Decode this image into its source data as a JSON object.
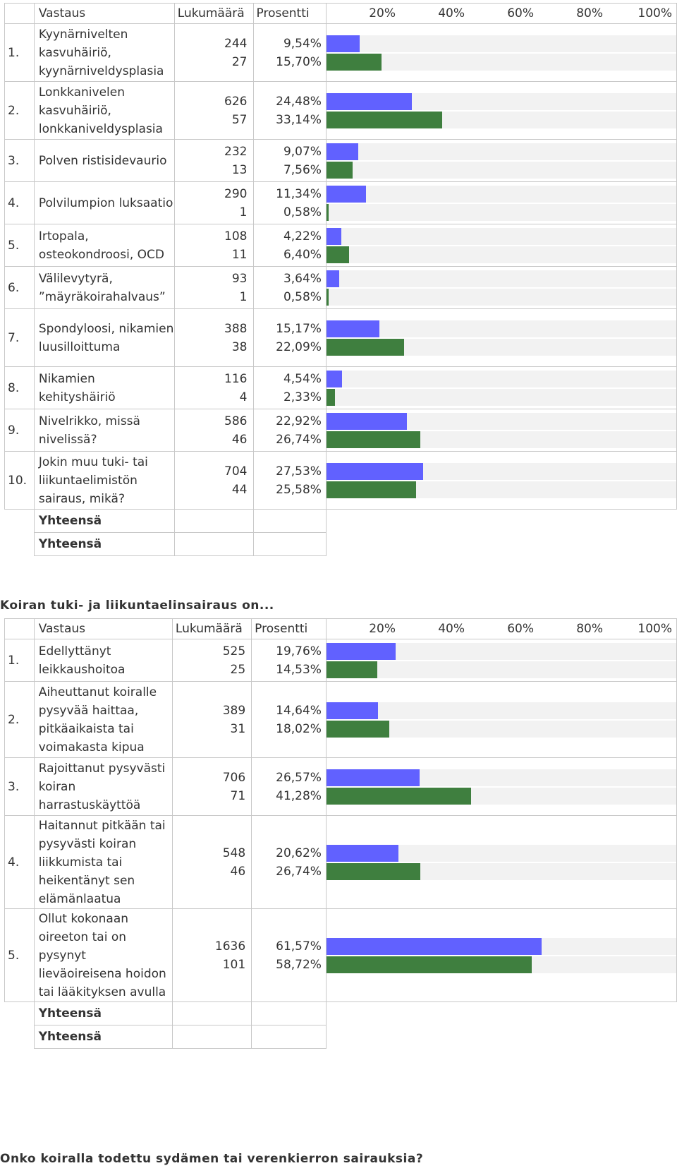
{
  "header": {
    "answer": "Vastaus",
    "count": "Lukumäärä",
    "percent": "Prosentti",
    "ticks": [
      "20%",
      "40%",
      "60%",
      "80%",
      "100%"
    ]
  },
  "total_label": "Yhteensä",
  "colors": {
    "series1": "#6161ff",
    "series2": "#3f7f3f",
    "track": "#f2f2f2"
  },
  "chart_data": [
    {
      "type": "bar",
      "title": "",
      "xlim": [
        0,
        100
      ],
      "categories": [
        "Kyynärnivelten kasvuhäiriö, kyynärniveldysplasia",
        "Lonkkanivelen kasvuhäiriö, lonkkaniveldysplasia",
        "Polven ristisidevaurio",
        "Polvilumpion luksaatio",
        "Irtopala, osteokondroosi, OCD",
        "Välilevytyrä, ”mäyräkoirahalvaus”",
        "Spondyloosi, nikamien luusilloittuma",
        "Nikamien kehityshäiriö",
        "Nivelrikko, missä nivelissä?",
        "Jokin muu tuki- tai liikuntaelimistön sairaus, mikä?"
      ],
      "series": [
        {
          "counts": [
            "244",
            "626",
            "232",
            "290",
            "108",
            "93",
            "388",
            "116",
            "586",
            "704"
          ],
          "percents": [
            "9,54%",
            "24,48%",
            "9,07%",
            "11,34%",
            "4,22%",
            "3,64%",
            "15,17%",
            "4,54%",
            "22,92%",
            "27,53%"
          ],
          "values": [
            9.54,
            24.48,
            9.07,
            11.34,
            4.22,
            3.64,
            15.17,
            4.54,
            22.92,
            27.53
          ]
        },
        {
          "counts": [
            "27",
            "57",
            "13",
            "1",
            "11",
            "1",
            "38",
            "4",
            "46",
            "44"
          ],
          "percents": [
            "15,70%",
            "33,14%",
            "7,56%",
            "0,58%",
            "6,40%",
            "0,58%",
            "22,09%",
            "2,33%",
            "26,74%",
            "25,58%"
          ],
          "values": [
            15.7,
            33.14,
            7.56,
            0.58,
            6.4,
            0.58,
            22.09,
            2.33,
            26.74,
            25.58
          ]
        }
      ]
    },
    {
      "type": "bar",
      "title": "Koiran tuki- ja liikuntaelinsairaus on...",
      "xlim": [
        0,
        100
      ],
      "categories": [
        "Edellyttänyt leikkaushoitoa",
        "Aiheuttanut koiralle pysyvää haittaa, pitkäaikaista tai voimakasta kipua",
        "Rajoittanut pysyvästi koiran harrastuskäyttöä",
        "Haitannut pitkään tai pysyvästi koiran liikkumista tai heikentänyt sen elämänlaatua",
        "Ollut kokonaan oireeton tai on pysynyt lieväoireisena hoidon tai lääkityksen avulla"
      ],
      "series": [
        {
          "counts": [
            "525",
            "389",
            "706",
            "548",
            "1636"
          ],
          "percents": [
            "19,76%",
            "14,64%",
            "26,57%",
            "20,62%",
            "61,57%"
          ],
          "values": [
            19.76,
            14.64,
            26.57,
            20.62,
            61.57
          ]
        },
        {
          "counts": [
            "25",
            "31",
            "71",
            "46",
            "101"
          ],
          "percents": [
            "14,53%",
            "18,02%",
            "41,28%",
            "26,74%",
            "58,72%"
          ],
          "values": [
            14.53,
            18.02,
            41.28,
            26.74,
            58.72
          ]
        }
      ]
    }
  ],
  "footer_title": "Onko koiralla todettu sydämen tai verenkierron sairauksia?"
}
